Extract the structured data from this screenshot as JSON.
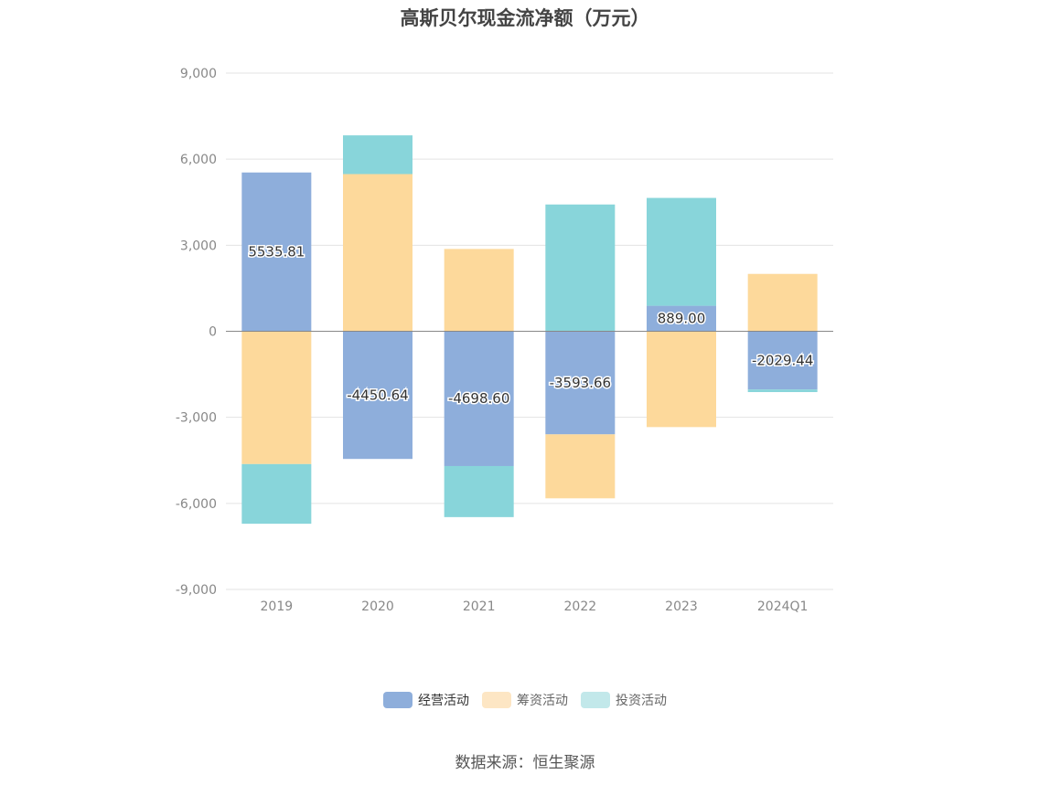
{
  "chart_data": {
    "type": "bar",
    "stacked": true,
    "title": "高斯贝尔现金流净额（万元）",
    "categories": [
      "2019",
      "2020",
      "2021",
      "2022",
      "2023",
      "2024Q1"
    ],
    "series": [
      {
        "name": "经营活动",
        "color": "#8eaedb",
        "values": [
          5535.81,
          -4450.64,
          -4698.6,
          -3593.66,
          889.0,
          -2029.44
        ]
      },
      {
        "name": "筹资活动",
        "color": "#fdd99b",
        "values": [
          -4630,
          5480,
          2870,
          -2230,
          -3340,
          2000
        ]
      },
      {
        "name": "投资活动",
        "color": "#88d5da",
        "values": [
          -2080,
          1350,
          -1780,
          4420,
          3760,
          -90
        ]
      }
    ],
    "data_labels": [
      "5535.81",
      "-4450.64",
      "-4698.60",
      "-3593.66",
      "889.00",
      "-2029.44"
    ],
    "yticks": [
      9000,
      6000,
      3000,
      0,
      -3000,
      -6000,
      -9000
    ],
    "ytick_labels": [
      "9,000",
      "6,000",
      "3,000",
      "0",
      "-3,000",
      "-6,000",
      "-9,000"
    ],
    "ylim": [
      -9000,
      9000
    ],
    "grid": true,
    "legend_position": "bottom",
    "source": "数据来源：恒生聚源"
  }
}
